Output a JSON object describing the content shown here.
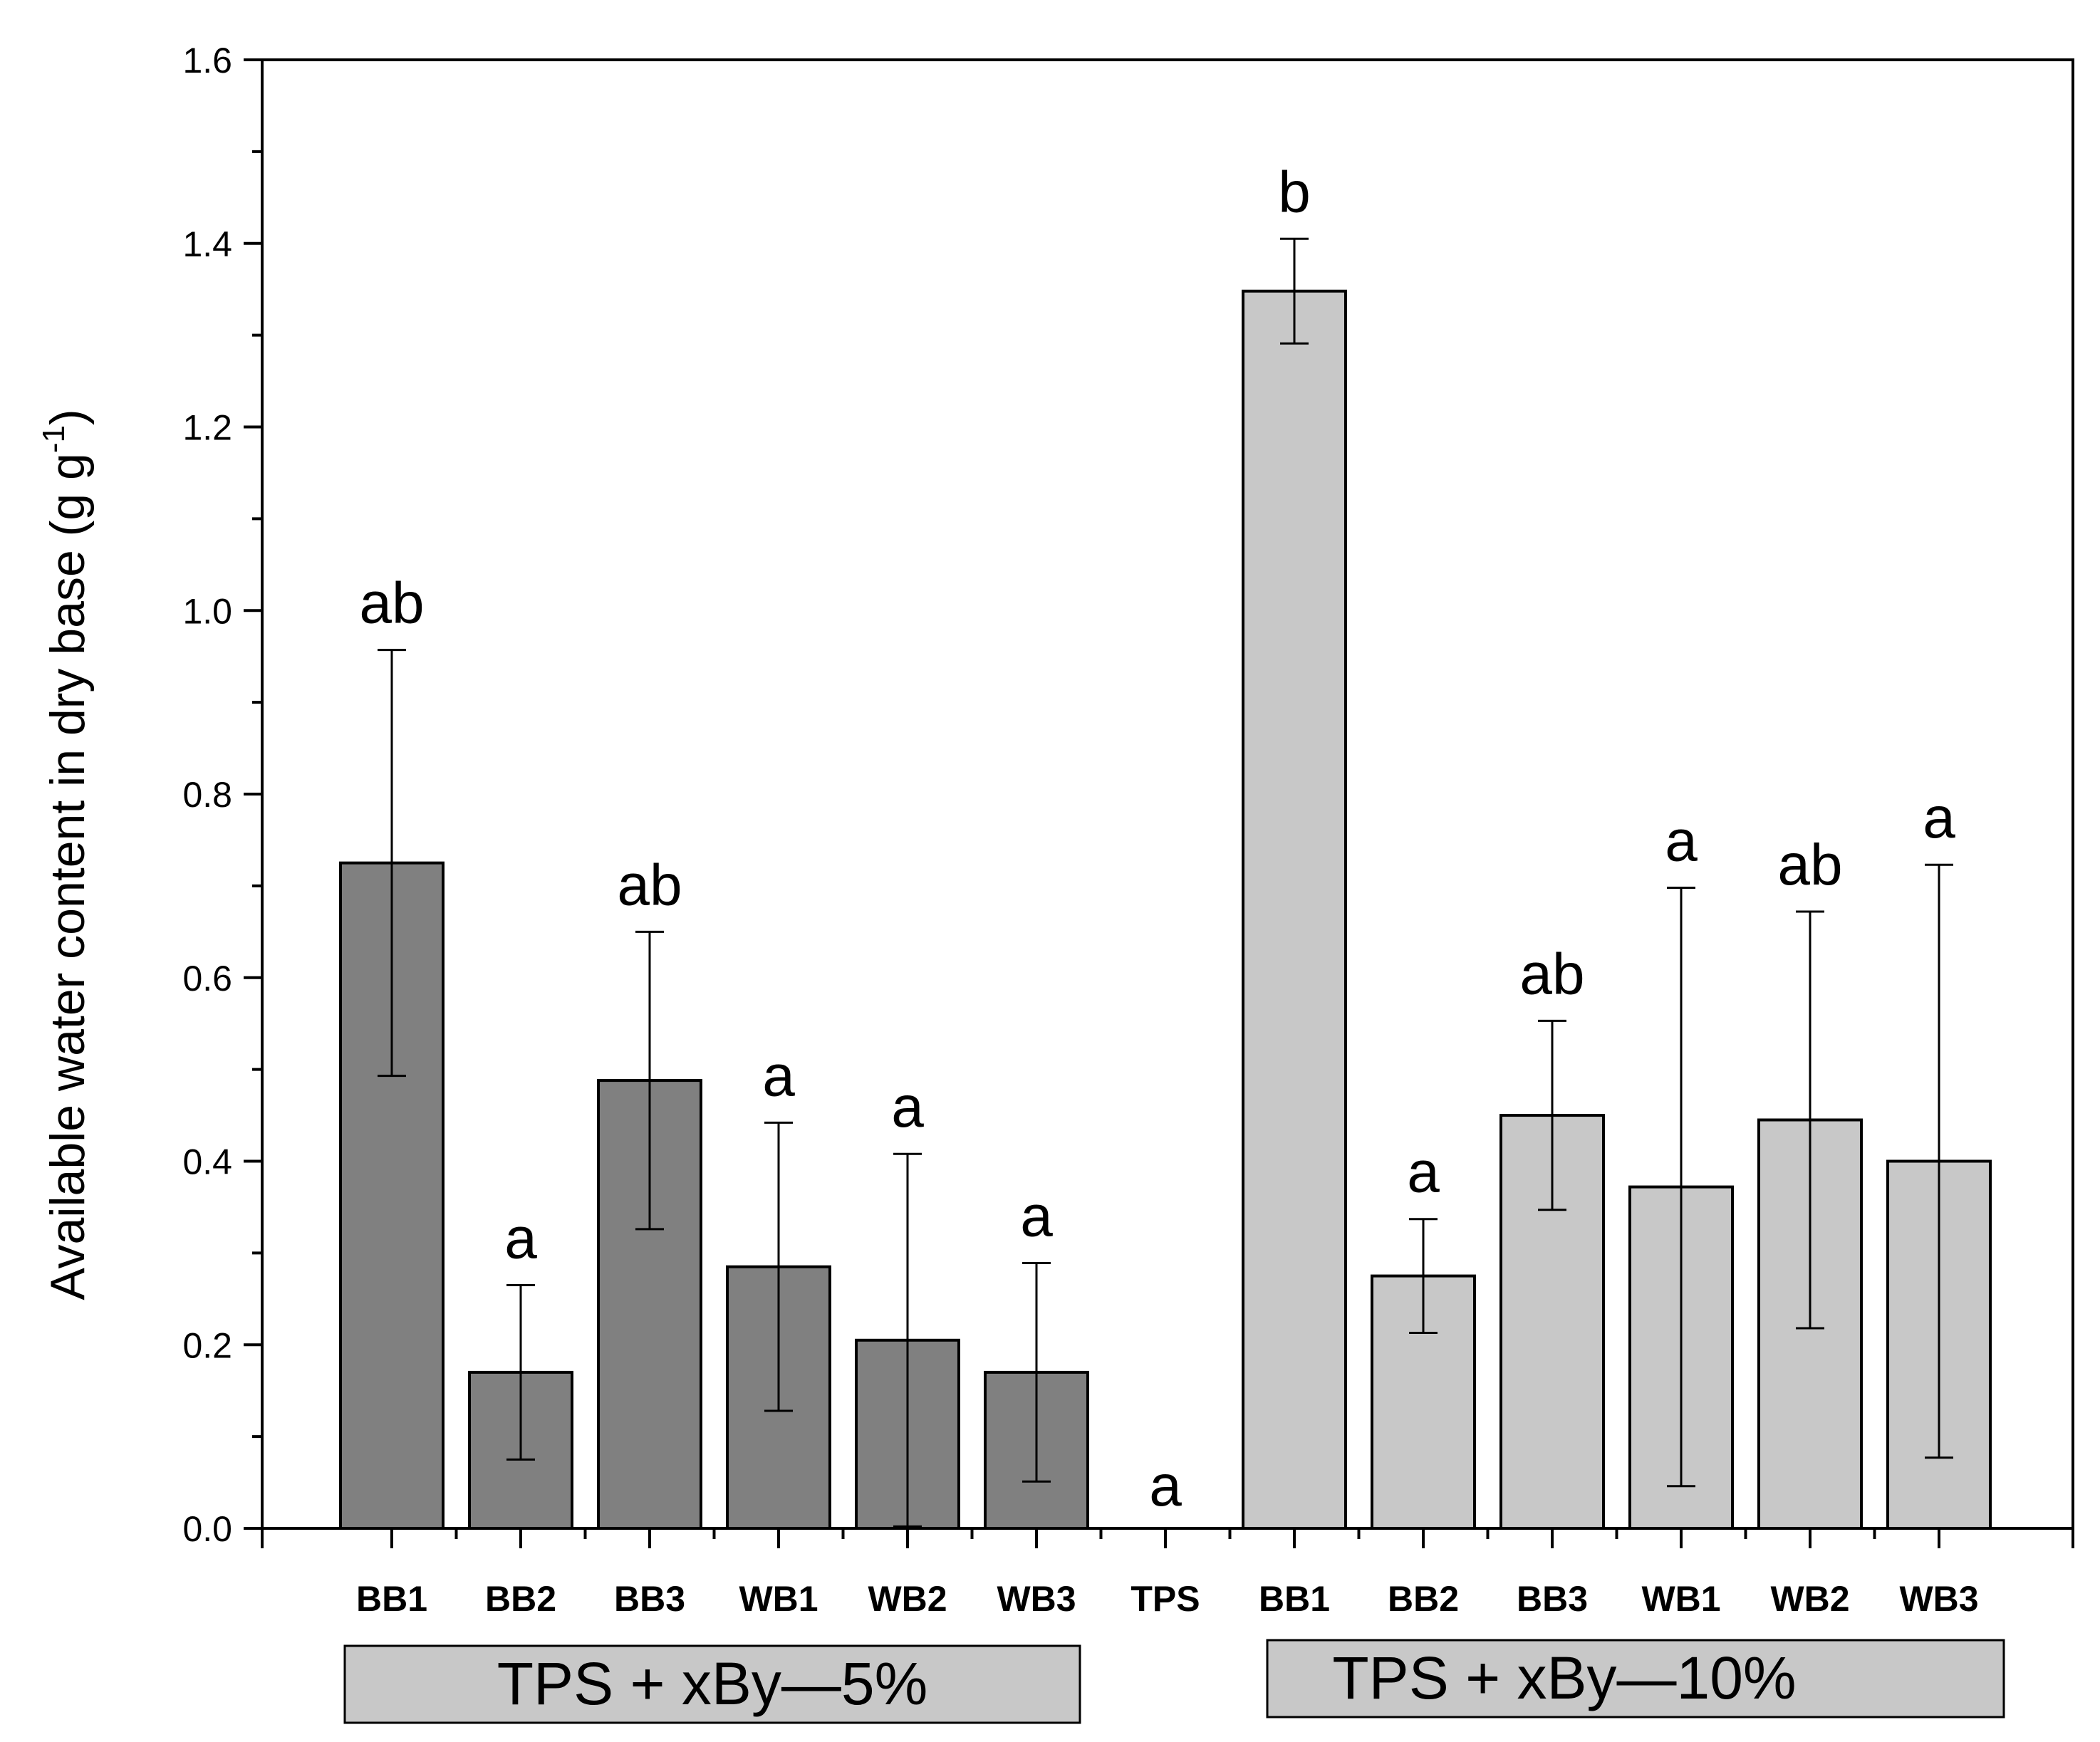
{
  "chart_data": {
    "type": "bar",
    "title": "",
    "xlabel": "",
    "ylabel": "Available water content in dry base (g g",
    "ylabel_superscript": "-1",
    "ylabel_close": ")",
    "ylim": [
      0,
      1.6
    ],
    "yticks": [
      "0.0",
      "0.2",
      "0.4",
      "0.6",
      "0.8",
      "1.0",
      "1.2",
      "1.4",
      "1.6"
    ],
    "grid": false,
    "categories": [
      "BB1",
      "BB2",
      "BB3",
      "WB1",
      "WB2",
      "WB3",
      "TPS",
      "BB1",
      "BB2",
      "BB3",
      "WB1",
      "WB2",
      "WB3"
    ],
    "values": [
      0.725,
      0.17,
      0.488,
      0.285,
      0.205,
      0.17,
      0.0,
      1.348,
      0.275,
      0.45,
      0.372,
      0.445,
      0.4
    ],
    "errors": [
      0.232,
      0.095,
      0.162,
      0.157,
      0.203,
      0.119,
      0.0,
      0.057,
      0.062,
      0.103,
      0.326,
      0.227,
      0.323
    ],
    "significance": [
      "ab",
      "a",
      "ab",
      "a",
      "a",
      "a",
      "a",
      "b",
      "a",
      "ab",
      "a",
      "ab",
      "a"
    ],
    "groups": [
      {
        "name": "TPS + xBy—5%",
        "indices": [
          0,
          1,
          2,
          3,
          4,
          5
        ],
        "color": "#808080"
      },
      {
        "name": "TPS",
        "indices": [
          6
        ],
        "color": "#808080"
      },
      {
        "name": "TPS + xBy—10%",
        "indices": [
          7,
          8,
          9,
          10,
          11,
          12
        ],
        "color": "#c8c8c8"
      }
    ]
  },
  "group_labels": {
    "five_percent": "TPS + xBy—5%",
    "ten_percent": "TPS + xBy—10%",
    "box_color": "#c8c8c8"
  }
}
